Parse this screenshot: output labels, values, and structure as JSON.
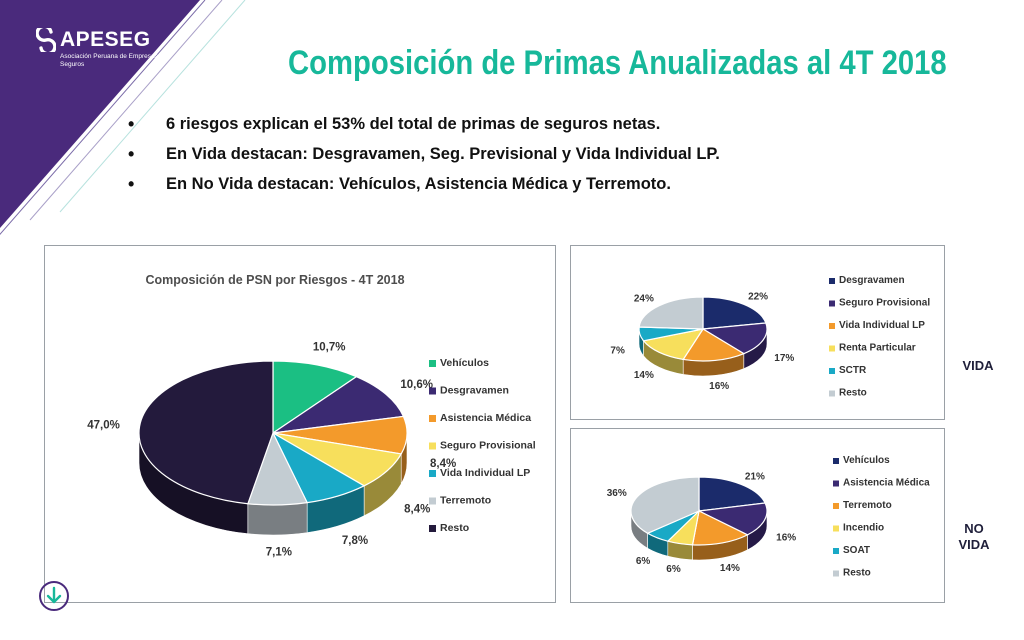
{
  "logo": {
    "name": "APESEG",
    "subtitle": "Asociación Peruana de Empresas de Seguros"
  },
  "title": "Composición de Primas Anualizadas al 4T 2018",
  "bullets": [
    "6 riesgos explican el 53% del total de primas de seguros netas.",
    "En Vida destacan: Desgravamen, Seg. Previsional y Vida Individual LP.",
    "En No Vida destacan: Vehículos, Asistencia Médica y Terremoto."
  ],
  "side_labels": {
    "vida": "VIDA",
    "no_vida_line1": "NO",
    "no_vida_line2": "VIDA"
  },
  "colors": {
    "corner_purple": "#4a2a7c",
    "title_teal": "#17b89a"
  },
  "chart_data": [
    {
      "type": "pie",
      "title": "Composición de PSN por Riesgos - 4T 2018",
      "legend_position": "right",
      "slices": [
        {
          "label": "Vehículos",
          "value": 10.7,
          "display": "10,7%",
          "color": "#1bbf83"
        },
        {
          "label": "Desgravamen",
          "value": 10.6,
          "display": "10,6%",
          "color": "#3b2a72"
        },
        {
          "label": "Asistencia Médica",
          "value": 8.4,
          "display": "8,4%",
          "color": "#f39a2b"
        },
        {
          "label": "Seguro Provisional",
          "value": 8.4,
          "display": "8,4%",
          "color": "#f7df5c"
        },
        {
          "label": "Vida Individual LP",
          "value": 7.8,
          "display": "7,8%",
          "color": "#19a9c6"
        },
        {
          "label": "Terremoto",
          "value": 7.1,
          "display": "7,1%",
          "color": "#c3ccd2"
        },
        {
          "label": "Resto",
          "value": 47.0,
          "display": "47,0%",
          "color": "#231a3c"
        }
      ]
    },
    {
      "type": "pie",
      "title": "",
      "legend_position": "right",
      "slices": [
        {
          "label": "Desgravamen",
          "value": 22,
          "display": "22%",
          "color": "#1b2b6b"
        },
        {
          "label": "Seguro Provisional",
          "value": 17,
          "display": "17%",
          "color": "#3b2a72"
        },
        {
          "label": "Vida Individual LP",
          "value": 16,
          "display": "16%",
          "color": "#f39a2b"
        },
        {
          "label": "Renta Particular",
          "value": 14,
          "display": "14%",
          "color": "#f7df5c"
        },
        {
          "label": "SCTR",
          "value": 7,
          "display": "7%",
          "color": "#19a9c6"
        },
        {
          "label": "Resto",
          "value": 24,
          "display": "24%",
          "color": "#c3ccd2"
        }
      ]
    },
    {
      "type": "pie",
      "title": "",
      "legend_position": "right",
      "slices": [
        {
          "label": "Vehículos",
          "value": 21,
          "display": "21%",
          "color": "#1b2b6b"
        },
        {
          "label": "Asistencia Médica",
          "value": 16,
          "display": "16%",
          "color": "#3b2a72"
        },
        {
          "label": "Terremoto",
          "value": 14,
          "display": "14%",
          "color": "#f39a2b"
        },
        {
          "label": "Incendio",
          "value": 6,
          "display": "6%",
          "color": "#f7df5c"
        },
        {
          "label": "SOAT",
          "value": 6,
          "display": "6%",
          "color": "#19a9c6"
        },
        {
          "label": "Resto",
          "value": 36,
          "display": "36%",
          "color": "#c3ccd2"
        }
      ]
    }
  ]
}
